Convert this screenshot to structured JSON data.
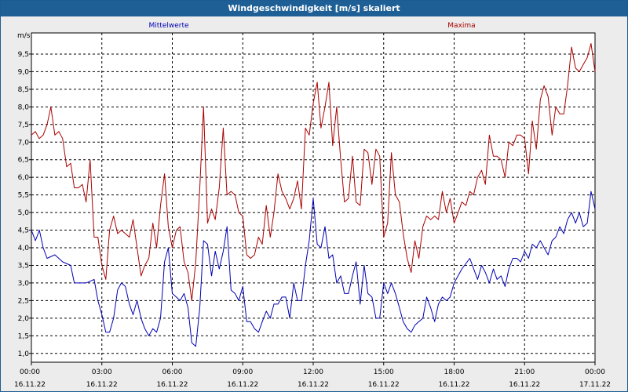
{
  "window": {
    "title": "Windgeschwindigkeit [m/s] skaliert"
  },
  "colors": {
    "mean": "#0000b4",
    "max": "#aa0000",
    "titlebar": "#1e5f96"
  },
  "chart_data": {
    "type": "line",
    "title": "Windgeschwindigkeit [m/s] skaliert",
    "ylabel": "m/s",
    "ylim": [
      0.75,
      10.1
    ],
    "yticks": [
      1.0,
      1.5,
      2.0,
      2.5,
      3.0,
      3.5,
      4.0,
      4.5,
      5.0,
      5.5,
      6.0,
      6.5,
      7.0,
      7.5,
      8.0,
      8.5,
      9.0,
      9.5
    ],
    "ytick_labels": [
      "1,0",
      "1,5",
      "2,0",
      "2,5",
      "3,0",
      "3,5",
      "4,0",
      "4,5",
      "5,0",
      "5,5",
      "6,0",
      "6,5",
      "7,0",
      "7,5",
      "8,0",
      "8,5",
      "9,0",
      "9,5"
    ],
    "xlim": [
      0,
      24
    ],
    "xticks": [
      0,
      3,
      6,
      9,
      12,
      15,
      18,
      21,
      24
    ],
    "xtick_times": [
      "00:00",
      "03:00",
      "06:00",
      "09:00",
      "12:00",
      "15:00",
      "18:00",
      "21:00",
      "00:00"
    ],
    "xtick_dates": [
      "16.11.22",
      "16.11.22",
      "16.11.22",
      "16.11.22",
      "16.11.22",
      "16.11.22",
      "16.11.22",
      "16.11.22",
      "17.11.22"
    ],
    "grid": true,
    "series": [
      {
        "name": "Mittelwerte",
        "color": "#0000b4",
        "legend_position": "top-left",
        "x": [
          0.0,
          0.17,
          0.34,
          0.5,
          0.67,
          1.0,
          1.33,
          1.67,
          1.83,
          2.0,
          2.33,
          2.67,
          2.83,
          3.0,
          3.17,
          3.33,
          3.5,
          3.67,
          3.83,
          4.0,
          4.17,
          4.33,
          4.5,
          4.67,
          4.83,
          5.0,
          5.17,
          5.33,
          5.5,
          5.67,
          5.83,
          6.0,
          6.17,
          6.33,
          6.5,
          6.67,
          6.83,
          7.0,
          7.17,
          7.33,
          7.5,
          7.67,
          7.83,
          8.0,
          8.17,
          8.33,
          8.5,
          8.67,
          8.83,
          9.0,
          9.17,
          9.33,
          9.5,
          9.67,
          9.83,
          10.0,
          10.17,
          10.33,
          10.5,
          10.67,
          10.83,
          11.0,
          11.17,
          11.33,
          11.5,
          11.67,
          11.83,
          12.0,
          12.17,
          12.33,
          12.5,
          12.67,
          12.83,
          13.0,
          13.17,
          13.33,
          13.5,
          13.67,
          13.83,
          14.0,
          14.17,
          14.33,
          14.5,
          14.67,
          14.83,
          15.0,
          15.17,
          15.33,
          15.5,
          15.67,
          15.83,
          16.0,
          16.17,
          16.33,
          16.5,
          16.67,
          16.83,
          17.0,
          17.17,
          17.33,
          17.5,
          17.67,
          17.83,
          18.0,
          18.33,
          18.67,
          19.0,
          19.17,
          19.33,
          19.5,
          19.67,
          19.83,
          20.0,
          20.17,
          20.33,
          20.5,
          20.67,
          20.83,
          21.0,
          21.17,
          21.33,
          21.5,
          21.67,
          21.83,
          22.0,
          22.17,
          22.33,
          22.5,
          22.67,
          22.83,
          23.0,
          23.17,
          23.33,
          23.5,
          23.67,
          23.83,
          24.0
        ],
        "y": [
          4.5,
          4.2,
          4.5,
          4.0,
          3.7,
          3.8,
          3.6,
          3.5,
          3.0,
          3.0,
          3.0,
          3.1,
          2.5,
          2.1,
          1.6,
          1.6,
          2.0,
          2.8,
          3.0,
          2.9,
          2.4,
          2.1,
          2.5,
          2.0,
          1.7,
          1.5,
          1.7,
          1.6,
          2.0,
          3.6,
          4.0,
          2.7,
          2.6,
          2.5,
          2.7,
          2.3,
          1.3,
          1.2,
          2.3,
          4.2,
          4.1,
          3.2,
          3.9,
          3.4,
          3.9,
          4.6,
          2.8,
          2.7,
          2.5,
          2.9,
          1.9,
          1.9,
          1.7,
          1.6,
          1.9,
          2.2,
          2.0,
          2.4,
          2.4,
          2.6,
          2.6,
          2.0,
          3.0,
          2.5,
          2.5,
          3.5,
          4.2,
          5.4,
          4.1,
          4.0,
          4.6,
          3.7,
          3.8,
          3.0,
          3.2,
          2.7,
          2.7,
          3.2,
          3.6,
          2.4,
          3.5,
          2.7,
          2.6,
          2.0,
          2.0,
          3.0,
          2.7,
          3.0,
          2.7,
          2.3,
          1.9,
          1.7,
          1.6,
          1.8,
          1.9,
          2.0,
          2.6,
          2.3,
          1.9,
          2.4,
          2.6,
          2.5,
          2.6,
          3.0,
          3.4,
          3.7,
          3.1,
          3.5,
          3.3,
          3.0,
          3.4,
          3.1,
          3.2,
          2.9,
          3.4,
          3.7,
          3.7,
          3.6,
          3.9,
          3.7,
          4.1,
          4.0,
          4.2,
          4.0,
          3.8,
          4.2,
          4.3,
          4.6,
          4.4,
          4.8,
          5.0,
          4.7,
          5.0,
          4.6,
          4.7,
          5.6,
          5.1
        ]
      },
      {
        "name": "Maxima",
        "color": "#aa0000",
        "legend_position": "top-right",
        "x": [
          0.0,
          0.17,
          0.33,
          0.5,
          0.67,
          0.83,
          1.0,
          1.17,
          1.33,
          1.5,
          1.67,
          1.83,
          2.0,
          2.17,
          2.33,
          2.5,
          2.67,
          2.83,
          3.0,
          3.17,
          3.33,
          3.5,
          3.67,
          3.83,
          4.0,
          4.17,
          4.33,
          4.5,
          4.67,
          4.83,
          5.0,
          5.17,
          5.33,
          5.5,
          5.67,
          5.83,
          6.0,
          6.17,
          6.33,
          6.5,
          6.67,
          6.83,
          7.0,
          7.17,
          7.33,
          7.5,
          7.67,
          7.83,
          8.0,
          8.17,
          8.33,
          8.5,
          8.67,
          8.83,
          9.0,
          9.17,
          9.33,
          9.5,
          9.67,
          9.83,
          10.0,
          10.17,
          10.33,
          10.5,
          10.67,
          10.83,
          11.0,
          11.17,
          11.33,
          11.5,
          11.67,
          11.83,
          12.0,
          12.17,
          12.33,
          12.5,
          12.67,
          12.83,
          13.0,
          13.17,
          13.33,
          13.5,
          13.67,
          13.83,
          14.0,
          14.17,
          14.33,
          14.5,
          14.67,
          14.83,
          15.0,
          15.17,
          15.33,
          15.5,
          15.67,
          15.83,
          16.0,
          16.17,
          16.33,
          16.5,
          16.67,
          16.83,
          17.0,
          17.17,
          17.33,
          17.5,
          17.67,
          17.83,
          18.0,
          18.17,
          18.33,
          18.5,
          18.67,
          18.83,
          19.0,
          19.17,
          19.33,
          19.5,
          19.67,
          19.83,
          20.0,
          20.17,
          20.33,
          20.5,
          20.67,
          20.83,
          21.0,
          21.17,
          21.33,
          21.5,
          21.67,
          21.83,
          22.0,
          22.17,
          22.33,
          22.5,
          22.67,
          22.83,
          23.0,
          23.17,
          23.33,
          23.5,
          23.67,
          23.83,
          24.0
        ],
        "y": [
          7.2,
          7.3,
          7.1,
          7.2,
          7.5,
          8.0,
          7.2,
          7.3,
          7.1,
          6.3,
          6.4,
          5.7,
          5.7,
          5.8,
          5.3,
          6.5,
          4.3,
          4.3,
          3.5,
          3.1,
          4.5,
          4.9,
          4.4,
          4.5,
          4.4,
          4.3,
          4.8,
          4.0,
          3.2,
          3.5,
          3.7,
          4.7,
          4.0,
          5.2,
          6.1,
          4.6,
          4.0,
          4.5,
          4.6,
          3.6,
          3.3,
          2.5,
          3.6,
          5.7,
          8.0,
          4.7,
          5.1,
          4.8,
          5.7,
          7.4,
          5.5,
          5.6,
          5.5,
          5.0,
          4.9,
          3.8,
          3.7,
          3.8,
          4.3,
          4.1,
          5.2,
          4.3,
          5.0,
          6.1,
          5.6,
          5.4,
          5.1,
          5.4,
          5.9,
          5.1,
          7.4,
          7.2,
          8.1,
          8.7,
          7.4,
          8.0,
          8.7,
          6.9,
          8.0,
          6.5,
          5.3,
          5.4,
          6.6,
          5.3,
          5.2,
          6.8,
          6.7,
          5.8,
          6.8,
          6.6,
          4.3,
          4.7,
          6.7,
          5.5,
          5.3,
          4.4,
          3.7,
          3.3,
          4.2,
          3.7,
          4.6,
          4.9,
          4.8,
          4.9,
          4.8,
          5.6,
          5.0,
          5.4,
          4.7,
          5.0,
          5.3,
          5.2,
          5.6,
          5.5,
          6.0,
          6.2,
          5.8,
          7.2,
          6.6,
          6.6,
          6.5,
          6.0,
          7.0,
          6.9,
          7.2,
          7.2,
          7.1,
          6.1,
          7.6,
          6.8,
          8.2,
          8.6,
          8.3,
          7.2,
          8.0,
          7.8,
          7.8,
          8.6,
          9.7,
          9.1,
          9.0,
          9.2,
          9.4,
          9.8,
          9.0
        ]
      }
    ]
  }
}
